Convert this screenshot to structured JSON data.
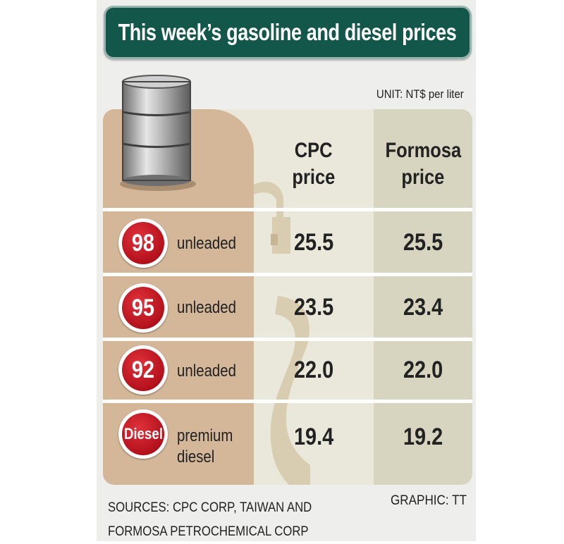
{
  "title": "This week’s gasoline and diesel prices",
  "unit": "UNIT: NT$ per liter",
  "colors": {
    "title_bg": "#13574a",
    "badge_red": "#c0141f",
    "left_col": "#d4b698",
    "mid_col": "#e9e8da",
    "right_col": "#d7d5c0"
  },
  "icons": {
    "barrel": "oil-drum-icon",
    "pump": "fuel-nozzle-icon"
  },
  "chart_data": {
    "type": "table",
    "title": "This week’s gasoline and diesel prices",
    "unit": "UNIT: NT$ per liter",
    "columns": [
      "CPC price",
      "Formosa price"
    ],
    "column_lines": [
      [
        "CPC",
        "price"
      ],
      [
        "Formosa",
        "price"
      ]
    ],
    "rows": [
      {
        "badge": "98",
        "label": [
          "unleaded"
        ],
        "values": [
          "25.5",
          "25.5"
        ]
      },
      {
        "badge": "95",
        "label": [
          "unleaded"
        ],
        "values": [
          "23.5",
          "23.4"
        ]
      },
      {
        "badge": "92",
        "label": [
          "unleaded"
        ],
        "values": [
          "22.0",
          "22.0"
        ]
      },
      {
        "badge": "Diesel",
        "label": [
          "premium",
          "diesel"
        ],
        "values": [
          "19.4",
          "19.2"
        ]
      }
    ]
  },
  "footer": {
    "sources_lines": [
      "SOURCES: CPC CORP, TAIWAN AND",
      "FORMOSA PETROCHEMICAL CORP"
    ],
    "graphic": "GRAPHIC: TT"
  }
}
